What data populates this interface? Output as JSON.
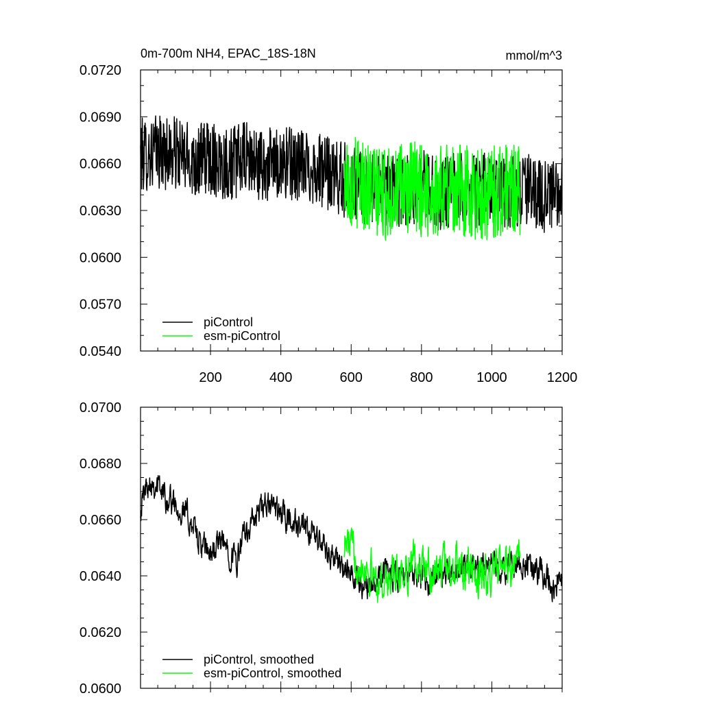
{
  "chart_data": [
    {
      "type": "line",
      "title": "0m-700m NH4, EPAC_18S-18N",
      "units": "mmol/m^3",
      "xlabel": "",
      "ylabel": "",
      "xlim": [
        1,
        1200
      ],
      "ylim": [
        0.054,
        0.072
      ],
      "x_ticks": [
        200,
        400,
        600,
        800,
        1000,
        1200
      ],
      "y_ticks": [
        "0.0540",
        "0.0570",
        "0.0600",
        "0.0630",
        "0.0660",
        "0.0690",
        "0.0720"
      ],
      "legend": {
        "position": "bottom-left"
      },
      "grid": false,
      "series": [
        {
          "name": "piControl",
          "color": "#000000",
          "x_range": [
            1,
            1200
          ],
          "values": [
            [
              1,
              0.0665
            ],
            [
              50,
              0.0668
            ],
            [
              100,
              0.0666
            ],
            [
              150,
              0.0662
            ],
            [
              200,
              0.0664
            ],
            [
              250,
              0.066
            ],
            [
              300,
              0.0663
            ],
            [
              350,
              0.0658
            ],
            [
              400,
              0.0661
            ],
            [
              450,
              0.0659
            ],
            [
              500,
              0.0657
            ],
            [
              550,
              0.0652
            ],
            [
              600,
              0.0648
            ],
            [
              650,
              0.0644
            ],
            [
              700,
              0.0643
            ],
            [
              750,
              0.0642
            ],
            [
              800,
              0.0645
            ],
            [
              850,
              0.0641
            ],
            [
              900,
              0.0643
            ],
            [
              950,
              0.0642
            ],
            [
              1000,
              0.0644
            ],
            [
              1050,
              0.0641
            ],
            [
              1100,
              0.0643
            ],
            [
              1150,
              0.0639
            ],
            [
              1200,
              0.064
            ]
          ],
          "noise_amplitude": 0.0024
        },
        {
          "name": "esm-piControl",
          "color": "#00ff00",
          "x_range": [
            580,
            1080
          ],
          "values": [
            [
              580,
              0.065
            ],
            [
              630,
              0.0648
            ],
            [
              680,
              0.064
            ],
            [
              730,
              0.0642
            ],
            [
              780,
              0.0644
            ],
            [
              830,
              0.0641
            ],
            [
              880,
              0.0645
            ],
            [
              930,
              0.0642
            ],
            [
              980,
              0.064
            ],
            [
              1030,
              0.0643
            ],
            [
              1080,
              0.0644
            ]
          ],
          "noise_amplitude": 0.003
        }
      ]
    },
    {
      "type": "line",
      "title": "",
      "xlabel": "",
      "ylabel": "",
      "xlim": [
        1,
        1200
      ],
      "ylim": [
        0.06,
        0.07
      ],
      "y_ticks": [
        "0.0600",
        "0.0620",
        "0.0640",
        "0.0660",
        "0.0680",
        "0.0700"
      ],
      "legend": {
        "position": "bottom-left"
      },
      "grid": false,
      "series": [
        {
          "name": "piControl, smoothed",
          "color": "#000000",
          "x_range": [
            1,
            1200
          ],
          "values": [
            [
              1,
              0.0665
            ],
            [
              25,
              0.0675
            ],
            [
              50,
              0.0672
            ],
            [
              75,
              0.0668
            ],
            [
              100,
              0.0666
            ],
            [
              125,
              0.0663
            ],
            [
              150,
              0.0658
            ],
            [
              175,
              0.065
            ],
            [
              200,
              0.0648
            ],
            [
              225,
              0.0652
            ],
            [
              250,
              0.065
            ],
            [
              275,
              0.0645
            ],
            [
              300,
              0.0656
            ],
            [
              325,
              0.066
            ],
            [
              350,
              0.0664
            ],
            [
              375,
              0.0665
            ],
            [
              400,
              0.0662
            ],
            [
              425,
              0.066
            ],
            [
              450,
              0.0658
            ],
            [
              475,
              0.0655
            ],
            [
              500,
              0.0654
            ],
            [
              525,
              0.065
            ],
            [
              550,
              0.0647
            ],
            [
              575,
              0.0642
            ],
            [
              600,
              0.064
            ],
            [
              625,
              0.0638
            ],
            [
              650,
              0.0637
            ],
            [
              675,
              0.064
            ],
            [
              700,
              0.0642
            ],
            [
              725,
              0.0641
            ],
            [
              750,
              0.064
            ],
            [
              775,
              0.0641
            ],
            [
              800,
              0.0639
            ],
            [
              825,
              0.0638
            ],
            [
              850,
              0.064
            ],
            [
              875,
              0.0641
            ],
            [
              900,
              0.0642
            ],
            [
              925,
              0.0643
            ],
            [
              950,
              0.064
            ],
            [
              975,
              0.0642
            ],
            [
              1000,
              0.0644
            ],
            [
              1025,
              0.0641
            ],
            [
              1050,
              0.0643
            ],
            [
              1075,
              0.0645
            ],
            [
              1100,
              0.0646
            ],
            [
              1125,
              0.0641
            ],
            [
              1150,
              0.064
            ],
            [
              1175,
              0.0636
            ],
            [
              1200,
              0.0637
            ]
          ],
          "noise_amplitude": 0.0009
        },
        {
          "name": "esm-piControl, smoothed",
          "color": "#00ff00",
          "x_range": [
            580,
            1080
          ],
          "values": [
            [
              580,
              0.0652
            ],
            [
              630,
              0.0645
            ],
            [
              680,
              0.0638
            ],
            [
              730,
              0.064
            ],
            [
              780,
              0.0645
            ],
            [
              830,
              0.0641
            ],
            [
              880,
              0.0644
            ],
            [
              930,
              0.0641
            ],
            [
              980,
              0.0639
            ],
            [
              1030,
              0.0643
            ],
            [
              1080,
              0.0645
            ]
          ],
          "noise_amplitude": 0.0013
        }
      ]
    }
  ]
}
